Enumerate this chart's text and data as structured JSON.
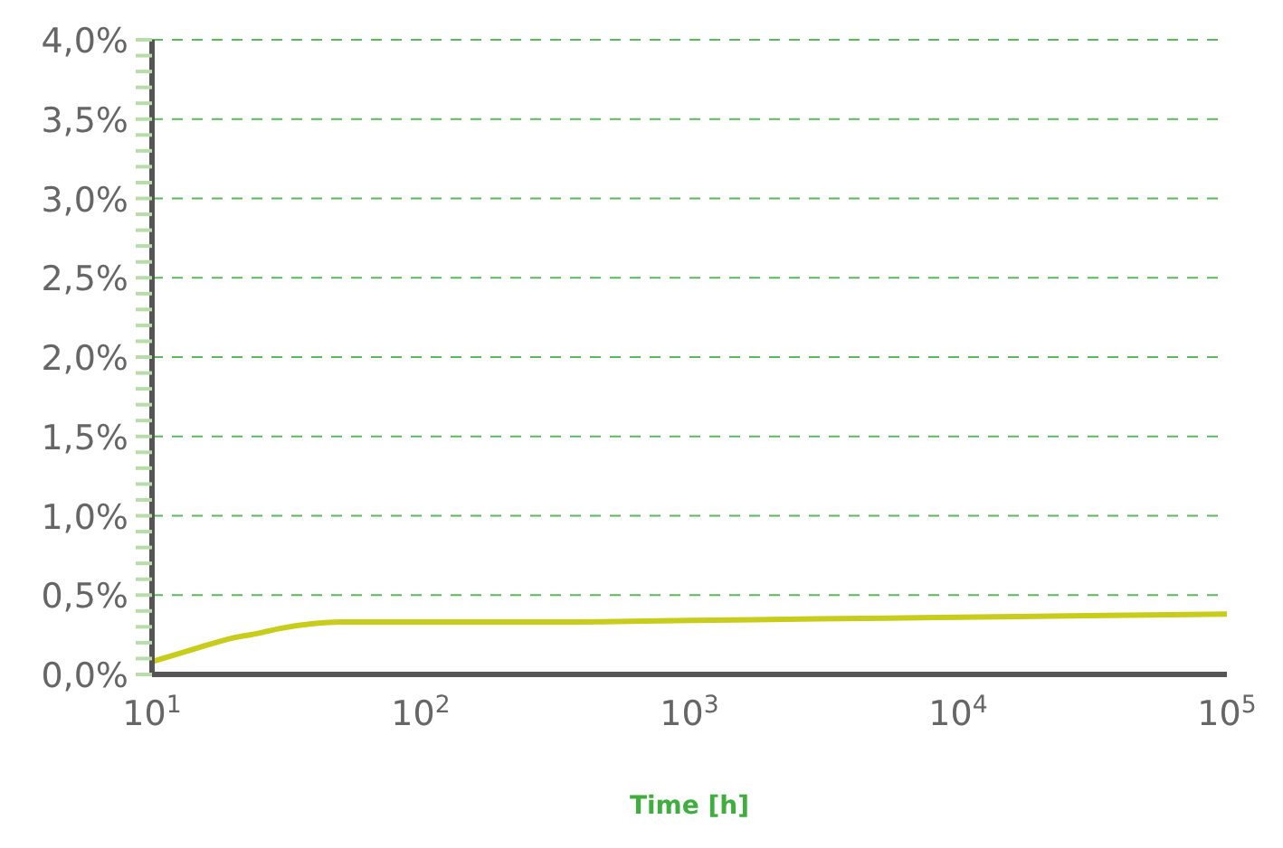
{
  "chart_data": {
    "type": "line",
    "xlabel": "Time [h]",
    "log": "x",
    "grid": "y",
    "marker": "none",
    "line_style": "solid",
    "x": [
      10,
      12,
      15,
      20,
      25,
      30,
      40,
      50,
      70,
      100,
      300,
      1000,
      3000,
      10000,
      30000,
      100000
    ],
    "series": [
      {
        "color": "#c8cc1a",
        "values": [
          0.08,
          0.12,
          0.17,
          0.23,
          0.26,
          0.29,
          0.32,
          0.33,
          0.33,
          0.33,
          0.33,
          0.34,
          0.35,
          0.36,
          0.37,
          0.38
        ]
      }
    ],
    "xlim": [
      10,
      100000
    ],
    "xticks": [
      {
        "value": 10,
        "label": "10$^{1}$"
      },
      {
        "value": 100,
        "label": "10$^{2}$"
      },
      {
        "value": 1000,
        "label": "10$^{3}$"
      },
      {
        "value": 10000,
        "label": "10$^{4}$"
      },
      {
        "value": 100000,
        "label": "10$^{5}$"
      }
    ],
    "ylim": [
      0,
      4
    ],
    "yticks": [
      {
        "value": 0,
        "label": "0,0%"
      },
      {
        "value": 0.1,
        "label": null
      },
      {
        "value": 0.2,
        "label": null
      },
      {
        "value": 0.3,
        "label": null
      },
      {
        "value": 0.4,
        "label": null
      },
      {
        "value": 0.5,
        "label": "0,5%"
      },
      {
        "value": 0.6,
        "label": null
      },
      {
        "value": 0.7,
        "label": null
      },
      {
        "value": 0.8,
        "label": null
      },
      {
        "value": 0.9,
        "label": null
      },
      {
        "value": 1,
        "label": "1,0%"
      },
      {
        "value": 1.1,
        "label": null
      },
      {
        "value": 1.2,
        "label": null
      },
      {
        "value": 1.3,
        "label": null
      },
      {
        "value": 1.4,
        "label": null
      },
      {
        "value": 1.5,
        "label": "1,5%"
      },
      {
        "value": 1.6,
        "label": null
      },
      {
        "value": 1.7,
        "label": null
      },
      {
        "value": 1.8,
        "label": null
      },
      {
        "value": 1.9,
        "label": null
      },
      {
        "value": 2,
        "label": "2,0%"
      },
      {
        "value": 2.1,
        "label": null
      },
      {
        "value": 2.2,
        "label": null
      },
      {
        "value": 2.3,
        "label": null
      },
      {
        "value": 2.4,
        "label": null
      },
      {
        "value": 2.5,
        "label": "2,5%"
      },
      {
        "value": 2.6,
        "label": null
      },
      {
        "value": 2.7,
        "label": null
      },
      {
        "value": 2.8,
        "label": null
      },
      {
        "value": 2.9,
        "label": null
      },
      {
        "value": 3,
        "label": "3,0%"
      },
      {
        "value": 3.1,
        "label": null
      },
      {
        "value": 3.2,
        "label": null
      },
      {
        "value": 3.3,
        "label": null
      },
      {
        "value": 3.4,
        "label": null
      },
      {
        "value": 3.5,
        "label": "3,5%"
      },
      {
        "value": 3.6,
        "label": null
      },
      {
        "value": 3.7,
        "label": null
      },
      {
        "value": 3.8,
        "label": null
      },
      {
        "value": 3.9,
        "label": null
      },
      {
        "value": 4,
        "label": "4,0%"
      }
    ]
  }
}
